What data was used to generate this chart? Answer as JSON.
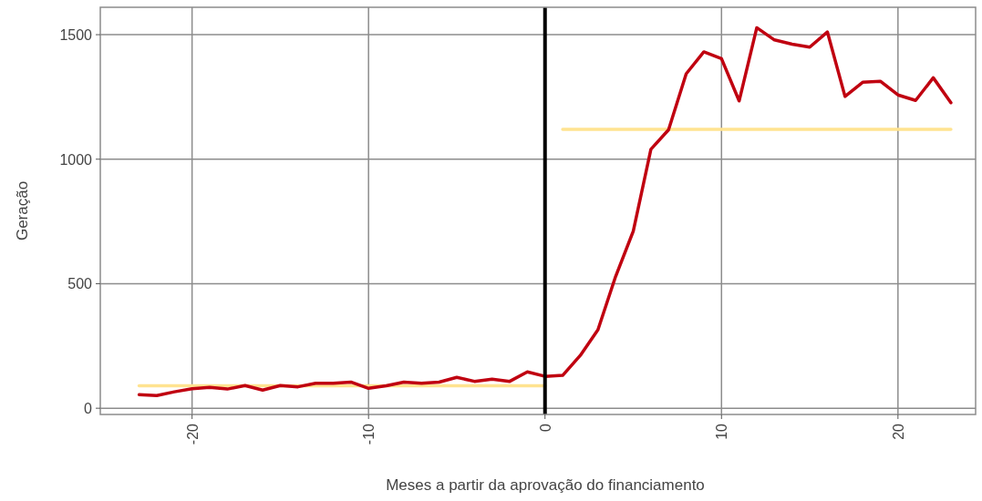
{
  "chart_data": {
    "type": "line",
    "xlabel": "Meses a partir da aprovação do financiamento",
    "ylabel": "Geração",
    "xlim": [
      -25.2,
      24.4
    ],
    "ylim": [
      -25,
      1610
    ],
    "xticks": [
      -20,
      -10,
      0,
      10,
      20
    ],
    "yticks": [
      0,
      500,
      1000,
      1500
    ],
    "grid": true,
    "ref_lines": [
      {
        "axis": "x",
        "value": 0,
        "color": "#000000"
      }
    ],
    "series": [
      {
        "color": "#ffe390",
        "x": [
          -23,
          0
        ],
        "values": [
          90,
          90
        ]
      },
      {
        "color": "#ffe390",
        "x": [
          1,
          23
        ],
        "values": [
          1120,
          1120
        ]
      },
      {
        "color": "#c00010",
        "x": [
          -23,
          -22,
          -21,
          -20,
          -19,
          -18,
          -17,
          -16,
          -15,
          -14,
          -13,
          -12,
          -11,
          -10,
          -9,
          -8,
          -7,
          -6,
          -5,
          -4,
          -3,
          -2,
          -1,
          0,
          1,
          2,
          3,
          4,
          5,
          6,
          7,
          8,
          9,
          10,
          11,
          12,
          13,
          14,
          15,
          16,
          17,
          18,
          19,
          20,
          21,
          22,
          23
        ],
        "values": [
          55,
          51,
          66,
          78,
          84,
          77,
          91,
          73,
          91,
          86,
          100,
          100,
          105,
          80,
          90,
          105,
          100,
          105,
          124,
          108,
          117,
          108,
          146,
          128,
          132,
          212,
          315,
          529,
          711,
          1040,
          1118,
          1343,
          1431,
          1404,
          1234,
          1528,
          1479,
          1462,
          1450,
          1511,
          1252,
          1309,
          1313,
          1258,
          1236,
          1327,
          1227
        ]
      }
    ]
  }
}
